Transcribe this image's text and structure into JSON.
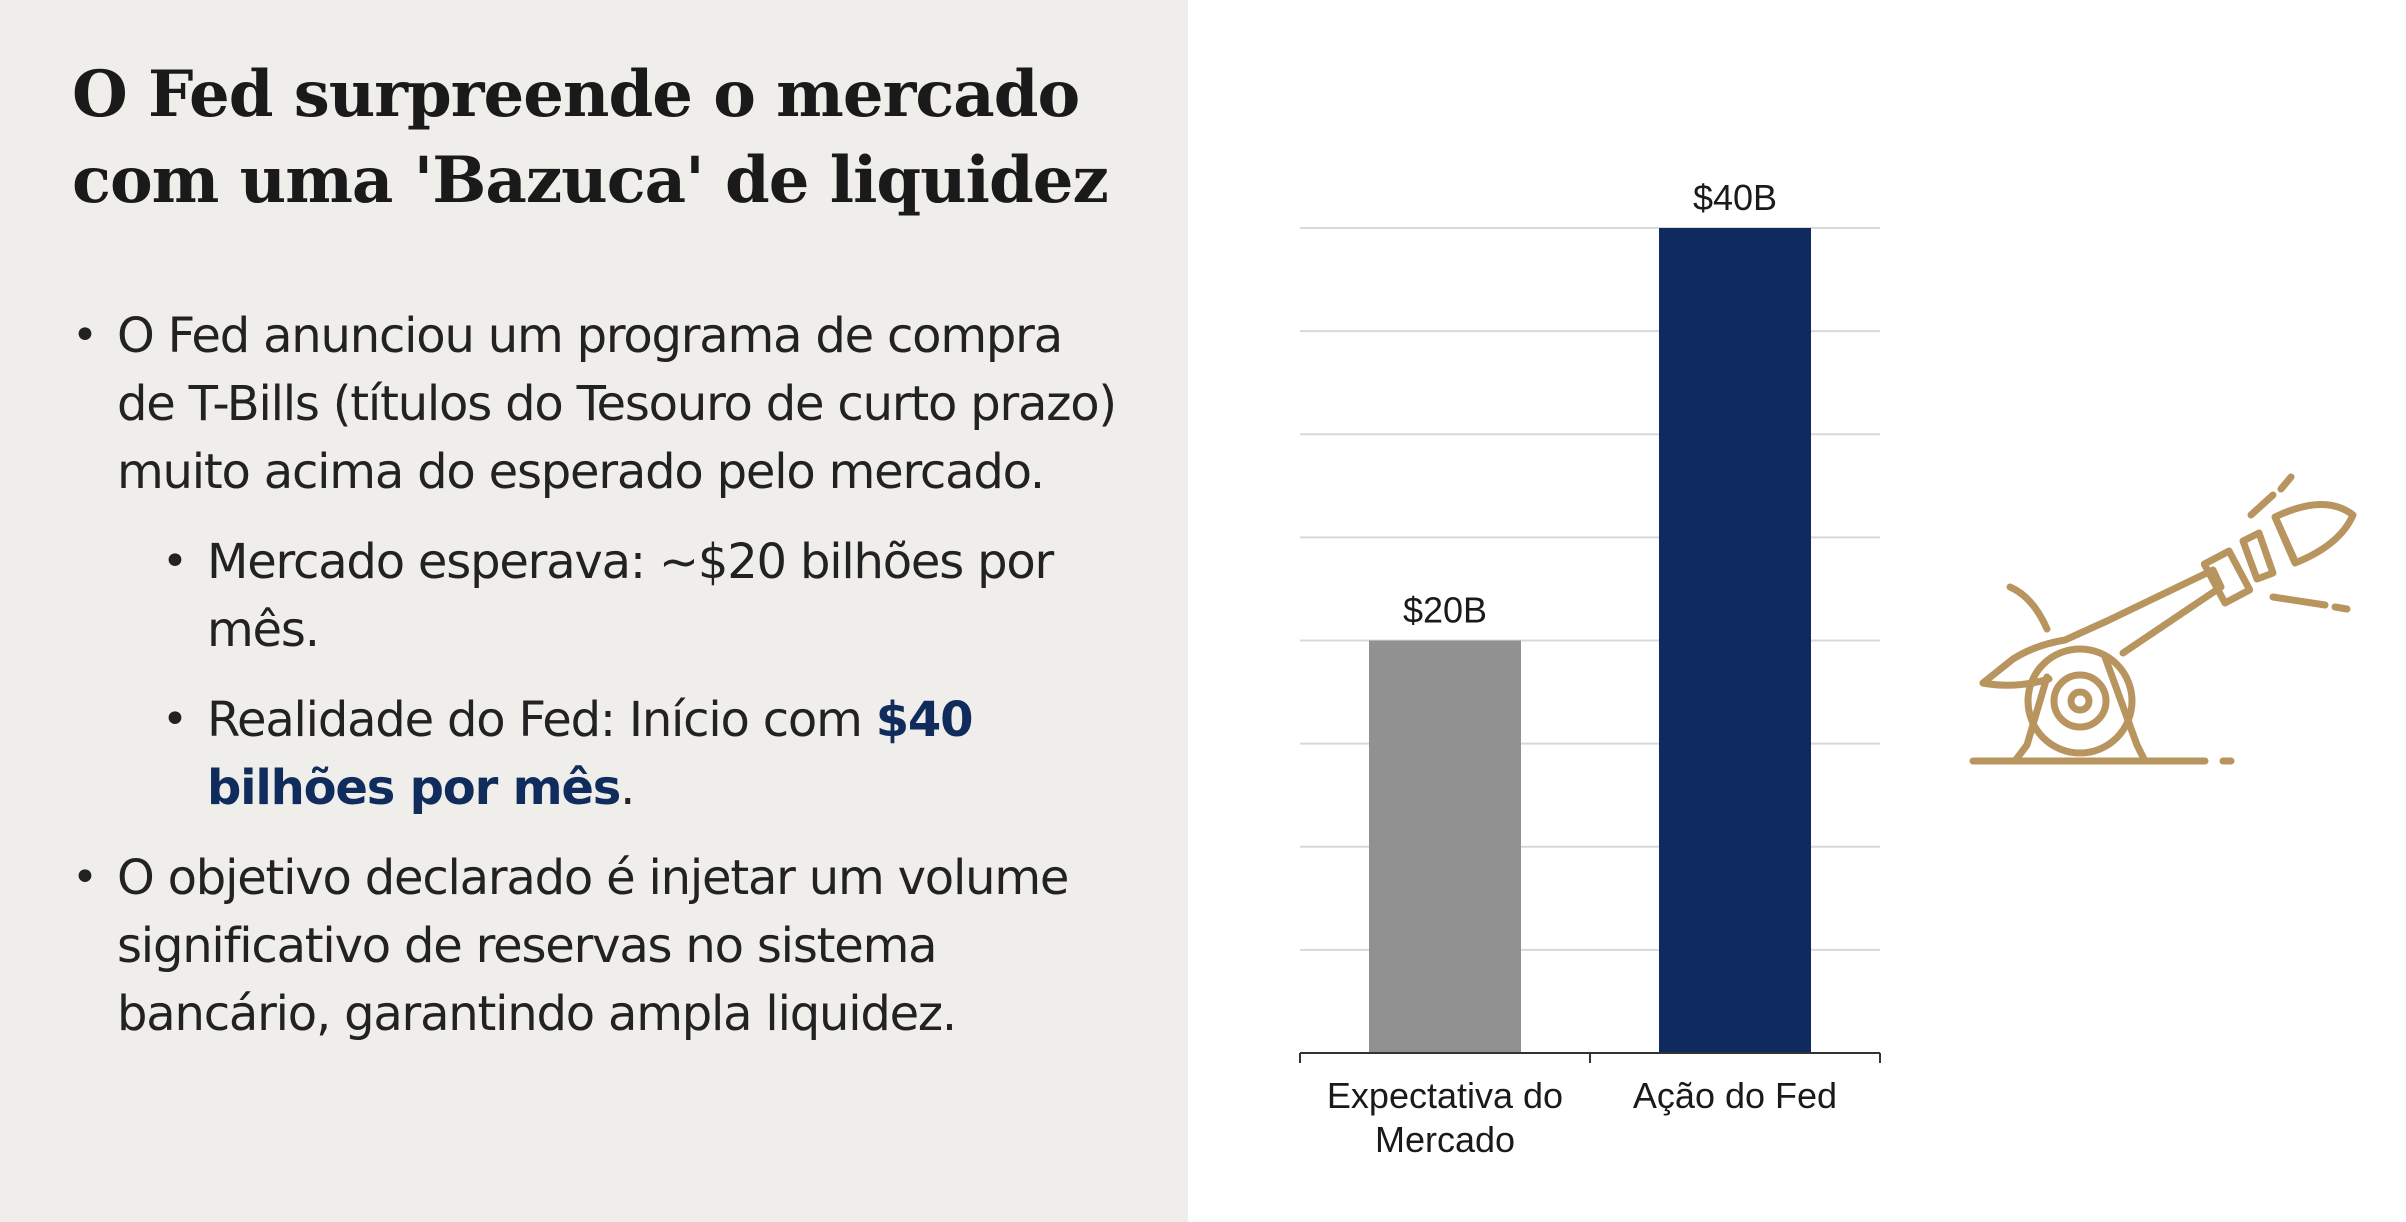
{
  "slide": {
    "title_line1": "O Fed surpreende o mercado",
    "title_line2": "com uma 'Bazuca' de liquidez",
    "bullet1": "O Fed anunciou um programa de compra de T-Bills (títulos do Tesouro de curto prazo) muito acima do esperado pelo mercado.",
    "sub_bullet1": "Mercado esperava: ~$20 bilhões por mês.",
    "sub_bullet2_prefix": "Realidade do Fed: Início com ",
    "sub_bullet2_highlight": "$40 bilhões por mês",
    "sub_bullet2_suffix": ".",
    "bullet2": "O objetivo declarado é injetar um volume significativo de reservas no sistema bancário, garantindo ampla liquidez."
  },
  "colors": {
    "left_panel": "#efeeea",
    "accent_navy": "#0f2c5c",
    "bar_gray": "#919191",
    "bar_navy": "#0e2a5e",
    "icon_gold": "#b8955e"
  },
  "icon": {
    "name": "cannon-icon"
  },
  "chart_data": {
    "type": "bar",
    "categories": [
      [
        "Expectativa do",
        "Mercado"
      ],
      [
        "Ação do Fed"
      ]
    ],
    "values": [
      20,
      40
    ],
    "data_labels": [
      "$20B",
      "$40B"
    ],
    "ylim": [
      0,
      40
    ],
    "y_gridline_step": 5,
    "grid": true,
    "legend": "none",
    "bar_colors": [
      "#919191",
      "#0e2a5e"
    ]
  }
}
